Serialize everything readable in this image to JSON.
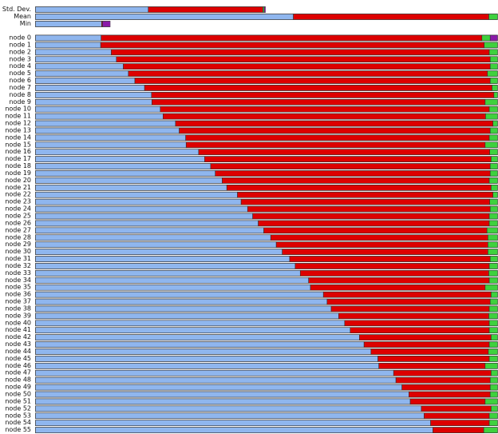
{
  "colors": {
    "blue": "#8fb6ee",
    "red": "#dd0000",
    "green": "#3ed13e",
    "purple": "#8a1aa8",
    "outline": "#333333"
  },
  "chart_data": {
    "type": "bar",
    "orientation": "horizontal",
    "stacked": true,
    "normalized": true,
    "grid": false,
    "legend": "none",
    "title": "",
    "xlabel": "",
    "ylabel": "",
    "summary": [
      {
        "label": "Std. Dev.",
        "segments": [
          0.244,
          0.248,
          0.003,
          0.003
        ],
        "filled": 0.498
      },
      {
        "label": "Mean",
        "segments": [
          0.558,
          0.423,
          0.019,
          0.0
        ],
        "filled": 1.0
      },
      {
        "label": "Min",
        "segments": [
          0.143,
          0.002,
          0.0,
          0.017
        ],
        "filled": 0.162
      }
    ],
    "series_names": [
      "",
      "",
      "",
      ""
    ],
    "categories": [
      "node 0",
      "node 1",
      "node 2",
      "node 3",
      "node 4",
      "node 5",
      "node 6",
      "node 7",
      "node 8",
      "node 9",
      "node 10",
      "node 11",
      "node 12",
      "node 13",
      "node 14",
      "node 15",
      "node 16",
      "node 17",
      "node 18",
      "node 19",
      "node 20",
      "node 21",
      "node 22",
      "node 23",
      "node 24",
      "node 25",
      "node 26",
      "node 27",
      "node 28",
      "node 29",
      "node 30",
      "node 31",
      "node 32",
      "node 33",
      "node 34",
      "node 35",
      "node 36",
      "node 37",
      "node 38",
      "node 39",
      "node 40",
      "node 41",
      "node 42",
      "node 43",
      "node 44",
      "node 45",
      "node 46",
      "node 47",
      "node 48",
      "node 49",
      "node 50",
      "node 51",
      "node 52",
      "node 53",
      "node 54",
      "node 55"
    ],
    "blue": [
      0.142,
      0.141,
      0.164,
      0.175,
      0.19,
      0.201,
      0.215,
      0.236,
      0.251,
      0.252,
      0.27,
      0.276,
      0.303,
      0.311,
      0.325,
      0.326,
      0.353,
      0.366,
      0.379,
      0.389,
      0.404,
      0.414,
      0.437,
      0.445,
      0.459,
      0.47,
      0.482,
      0.494,
      0.509,
      0.521,
      0.534,
      0.55,
      0.562,
      0.573,
      0.591,
      0.595,
      0.623,
      0.631,
      0.64,
      0.656,
      0.669,
      0.681,
      0.701,
      0.711,
      0.726,
      0.741,
      0.743,
      0.775,
      0.78,
      0.793,
      0.808,
      0.811,
      0.835,
      0.841,
      0.855,
      0.86
    ],
    "green": [
      0.018,
      0.029,
      0.018,
      0.016,
      0.016,
      0.022,
      0.016,
      0.012,
      0.008,
      0.027,
      0.018,
      0.026,
      0.01,
      0.016,
      0.018,
      0.027,
      0.017,
      0.014,
      0.016,
      0.016,
      0.018,
      0.014,
      0.01,
      0.017,
      0.016,
      0.018,
      0.018,
      0.023,
      0.021,
      0.021,
      0.021,
      0.016,
      0.018,
      0.019,
      0.018,
      0.027,
      0.014,
      0.016,
      0.018,
      0.019,
      0.018,
      0.018,
      0.014,
      0.018,
      0.02,
      0.018,
      0.027,
      0.014,
      0.016,
      0.016,
      0.016,
      0.027,
      0.014,
      0.018,
      0.018,
      0.03
    ],
    "purple": [
      0.016,
      0,
      0,
      0,
      0,
      0,
      0,
      0,
      0,
      0,
      0,
      0,
      0,
      0,
      0,
      0,
      0,
      0,
      0,
      0,
      0,
      0,
      0,
      0,
      0,
      0,
      0,
      0,
      0,
      0,
      0,
      0,
      0,
      0,
      0,
      0,
      0,
      0,
      0,
      0,
      0,
      0,
      0,
      0,
      0,
      0,
      0,
      0,
      0,
      0,
      0,
      0,
      0,
      0,
      0,
      0
    ]
  }
}
